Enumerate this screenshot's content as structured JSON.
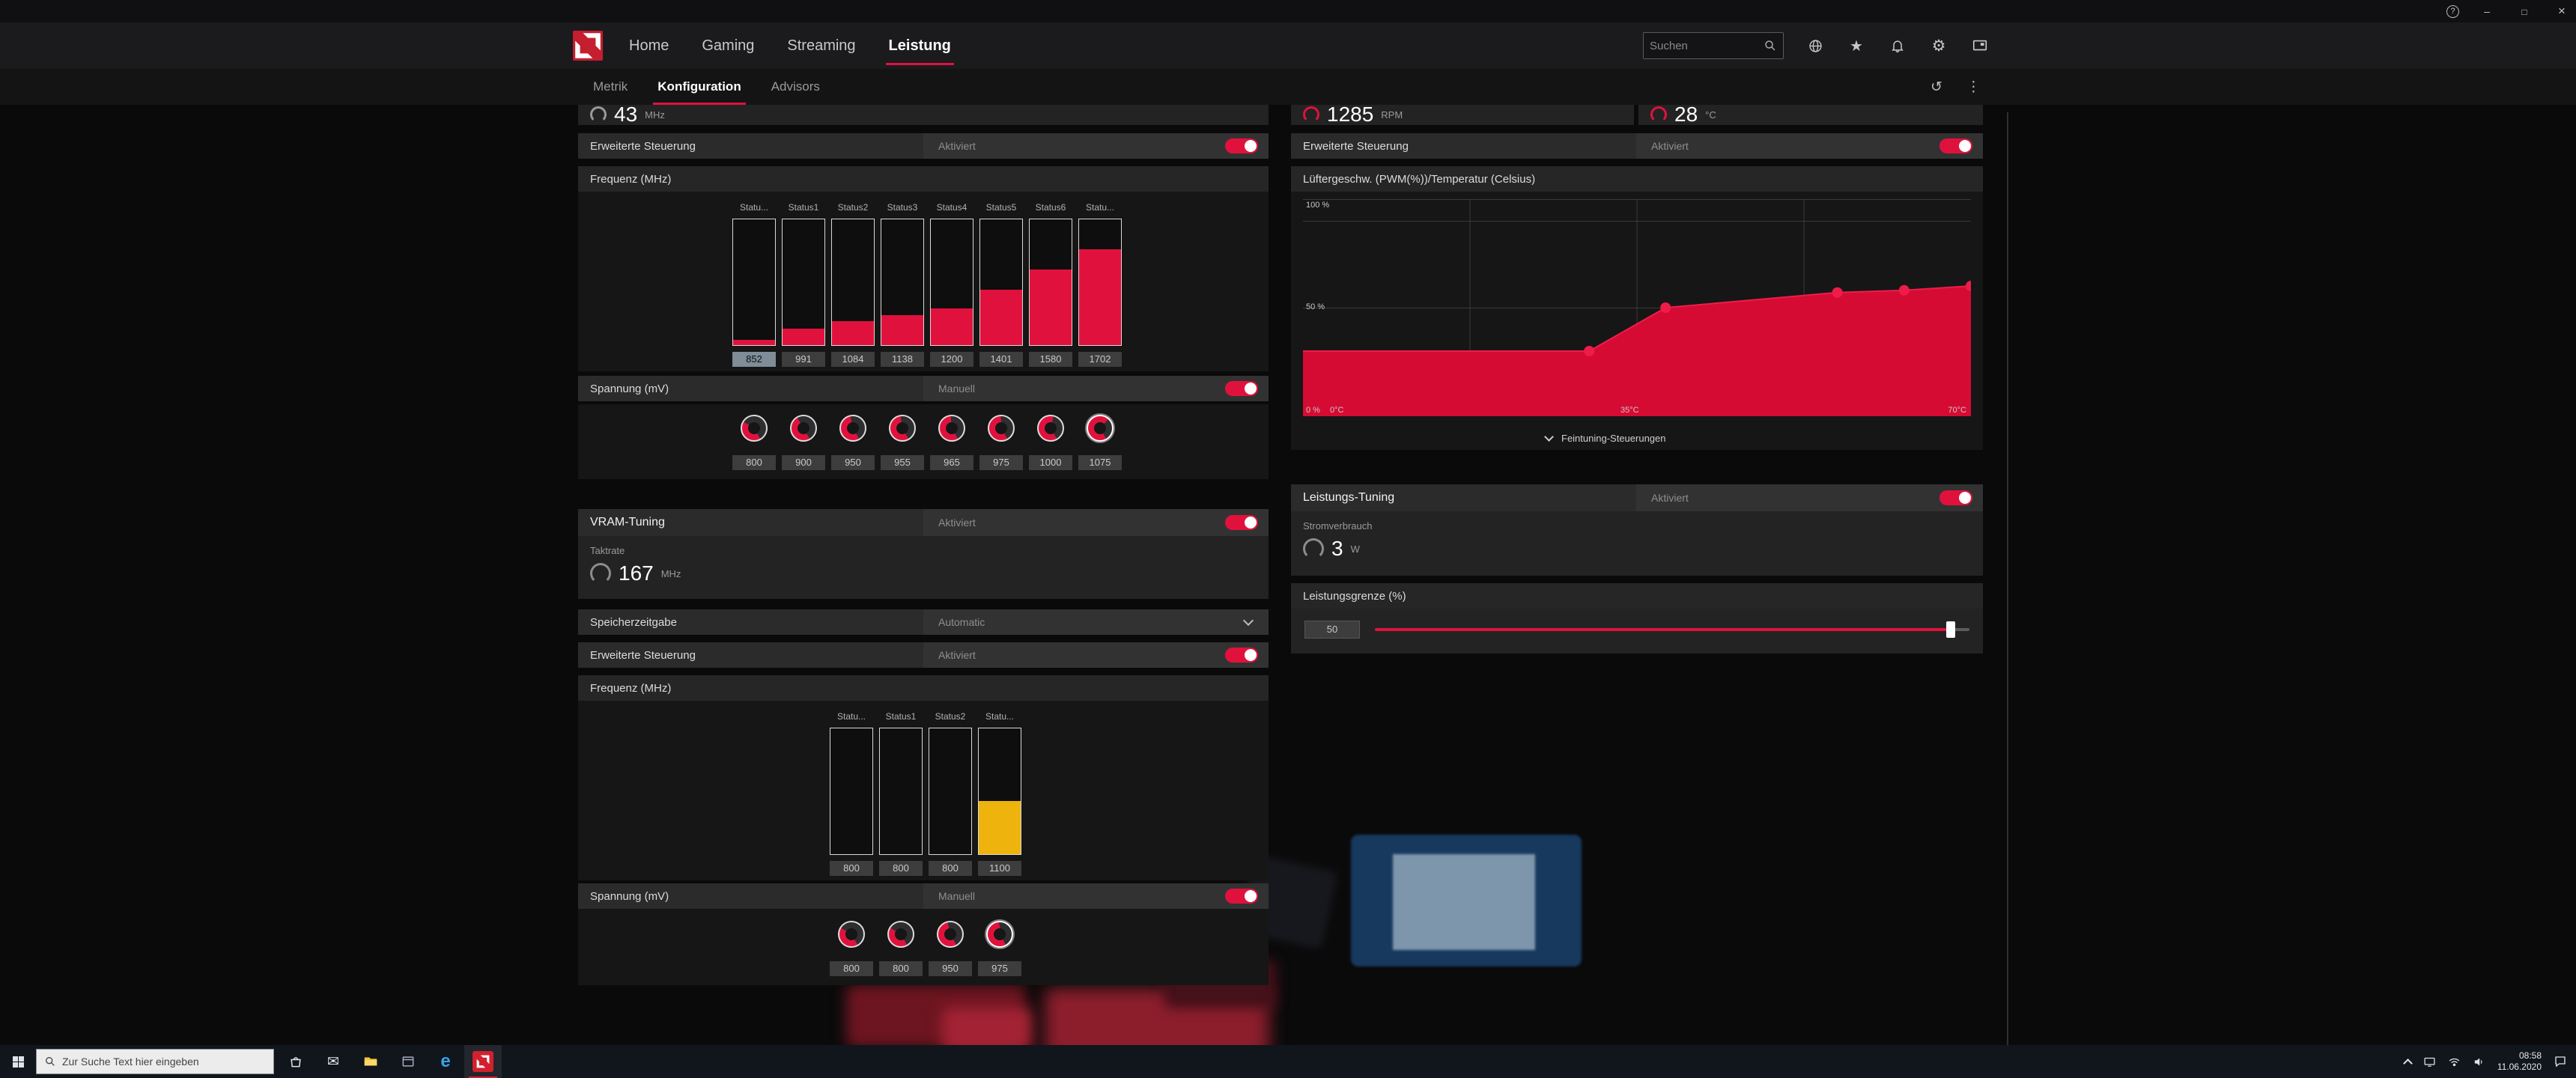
{
  "colors": {
    "accent": "#e0123d",
    "amber": "#eeb30c",
    "chart_red": "#d60b33",
    "chart_dot": "#ef1c4a"
  },
  "window": {
    "help": "?"
  },
  "nav": {
    "items": [
      "Home",
      "Gaming",
      "Streaming",
      "Leistung"
    ],
    "active_index": 3,
    "search_placeholder": "Suchen"
  },
  "subnav": {
    "items": [
      "Metrik",
      "Konfiguration",
      "Advisors"
    ],
    "active_index": 1
  },
  "gpu": {
    "clock": {
      "value": "43",
      "unit": "MHz"
    },
    "advanced": {
      "label": "Erweiterte Steuerung",
      "state": "Aktiviert"
    },
    "freq": {
      "label": "Frequenz (MHz)",
      "columns": [
        "Statu...",
        "Status1",
        "Status2",
        "Status3",
        "Status4",
        "Status5",
        "Status6",
        "Statu..."
      ],
      "values": [
        "852",
        "991",
        "1084",
        "1138",
        "1200",
        "1401",
        "1580",
        "1702"
      ],
      "fill_pct": [
        4,
        13,
        19,
        24,
        29,
        44,
        60,
        76
      ],
      "selected_index": 0
    },
    "voltage": {
      "label": "Spannung (mV)",
      "state": "Manuell",
      "values": [
        "800",
        "900",
        "950",
        "955",
        "965",
        "975",
        "1000",
        "1075"
      ],
      "arc_pct": [
        42,
        50,
        55,
        56,
        57,
        58,
        62,
        70
      ],
      "selected_index": 7
    }
  },
  "vram": {
    "title": "VRAM-Tuning",
    "state": "Aktiviert",
    "clock_label": "Taktrate",
    "clock": {
      "value": "167",
      "unit": "MHz"
    },
    "timing": {
      "label": "Speicherzeitgabe",
      "value": "Automatic"
    },
    "advanced": {
      "label": "Erweiterte Steuerung",
      "state": "Aktiviert"
    },
    "freq": {
      "label": "Frequenz (MHz)",
      "columns": [
        "Statu...",
        "Status1",
        "Status2",
        "Statu..."
      ],
      "values": [
        "800",
        "800",
        "800",
        "1100"
      ],
      "fill_pct": [
        0,
        0,
        0,
        42
      ],
      "selected_index": 3
    },
    "voltage": {
      "label": "Spannung (mV)",
      "state": "Manuell",
      "values": [
        "800",
        "800",
        "950",
        "975"
      ],
      "arc_pct": [
        42,
        42,
        55,
        58
      ],
      "selected_index": 3
    }
  },
  "fan": {
    "rpm": {
      "value": "1285",
      "unit": "RPM"
    },
    "temp": {
      "value": "28",
      "unit": "°C"
    },
    "advanced": {
      "label": "Erweiterte Steuerung",
      "state": "Aktiviert"
    },
    "chart_label": "Lüftergeschw. (PWM(%))/Temperatur (Celsius)",
    "chart_data": {
      "type": "area",
      "xlim": [
        0,
        70
      ],
      "ylim": [
        0,
        100
      ],
      "x_unit": "°C",
      "y_unit": "%",
      "curve": [
        [
          0,
          30
        ],
        [
          30,
          30
        ],
        [
          38,
          50
        ],
        [
          56,
          57
        ],
        [
          63,
          58
        ],
        [
          70,
          60
        ]
      ],
      "y_ticks": [
        "100 %",
        "50 %",
        "0 %"
      ],
      "x_ticks": [
        "0°C",
        "35°C",
        "70°C"
      ]
    },
    "fine_tuning_label": "Feintuning-Steuerungen"
  },
  "power": {
    "title": "Leistungs-Tuning",
    "state": "Aktiviert",
    "consumption_label": "Stromverbrauch",
    "consumption": {
      "value": "3",
      "unit": "W"
    },
    "limit_label": "Leistungsgrenze (%)",
    "limit_value": "50",
    "slider_pct": 97
  },
  "taskbar": {
    "search_placeholder": "Zur Suche Text hier eingeben",
    "edge_glyph": "e",
    "clock": {
      "time": "08:58",
      "date": "11.06.2020"
    }
  }
}
